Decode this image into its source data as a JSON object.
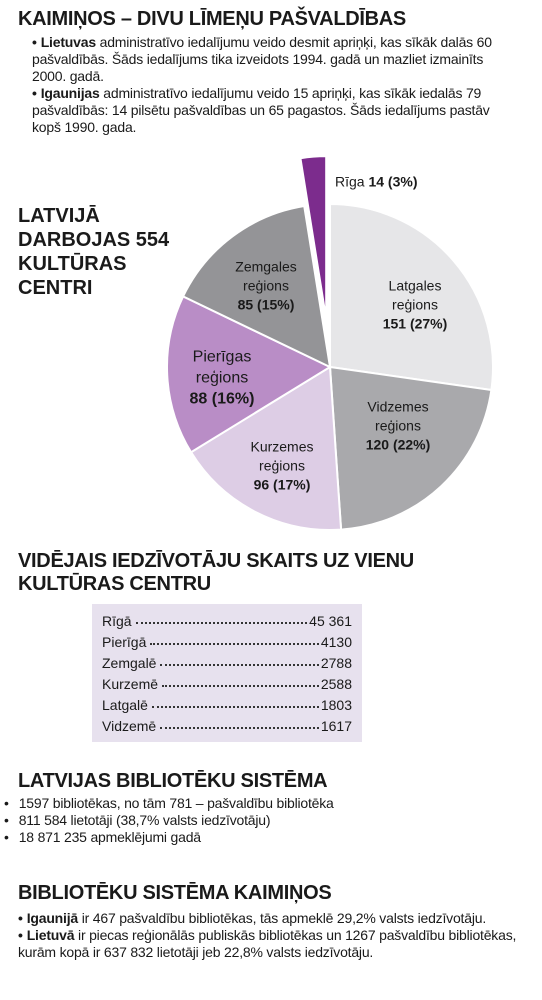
{
  "neighbors": {
    "title": "KAIMIŅOS – DIVU LĪMEŅU PAŠVALDĪBAS",
    "items": [
      {
        "bold": "Lietuvas",
        "text": "administratīvo iedalījumu veido desmit apriņķi, kas sīkāk dalās 60 pašvaldībās. Šāds iedalījums tika izveidots 1994. gadā un mazliet izmainīts 2000. gadā."
      },
      {
        "bold": "Igaunijas",
        "text": "administratīvo iedalījumu veido 15 apriņķi, kas sīkāk iedalās 79 pašvaldībās: 14 pilsētu pašvaldības un 65 pagastos. Šāds iedalījums pastāv kopš 1990. gada."
      }
    ]
  },
  "chart_data": {
    "type": "pie",
    "title": "LATVIJĀ DARBOJAS 554 KULTŪRAS CENTRI",
    "categories": [
      "Latgales reģions",
      "Vidzemes reģions",
      "Kurzemes reģions",
      "Pierīgas reģions",
      "Zemgales reģions",
      "Rīga"
    ],
    "values": [
      151,
      120,
      96,
      88,
      85,
      14
    ],
    "value_labels": [
      "151 (27%)",
      "120 (22%)",
      "96 (17%)",
      "88 (16%)",
      "85 (15%)",
      "14 (3%)"
    ],
    "colors": [
      "#e6e6e8",
      "#a9a9ac",
      "#ddcde5",
      "#b98dc6",
      "#949497",
      "#7c2c8d"
    ],
    "exploded": [
      "Rīga"
    ]
  },
  "average": {
    "title": "VIDĒJAIS IEDZĪVOTĀJU SKAITS UZ VIENU KULTŪRAS CENTRU",
    "rows": [
      [
        "Rīgā",
        "45 361"
      ],
      [
        "Pierīgā",
        "4130"
      ],
      [
        "Zemgalē",
        "2788"
      ],
      [
        "Kurzemē",
        "2588"
      ],
      [
        "Latgalē",
        "1803"
      ],
      [
        "Vidzemē",
        "1617"
      ]
    ]
  },
  "library": {
    "title": "LATVIJAS BIBLIOTĒKU SISTĒMA",
    "items": [
      "1597 bibliotēkas, no tām 781 – pašvaldību bibliotēka",
      "811 584 lietotāji (38,7% valsts iedzīvotāju)",
      "18 871 235 apmeklējumi gadā"
    ]
  },
  "neighbor_libraries": {
    "title": "BIBLIOTĒKU SISTĒMA KAIMIŅOS",
    "items": [
      {
        "bold": "Igaunijā",
        "text": "ir 467 pašvaldību bibliotēkas, tās apmeklē 29,2% valsts iedzīvotāju."
      },
      {
        "bold": "Lietuvā",
        "text": "ir piecas reģionālās publiskās bibliotēkas un 1267 pašvaldību bibliotēkas, kurām kopā ir 637 832 lietotāji jeb 22,8% valsts iedzīvotāju."
      }
    ]
  }
}
